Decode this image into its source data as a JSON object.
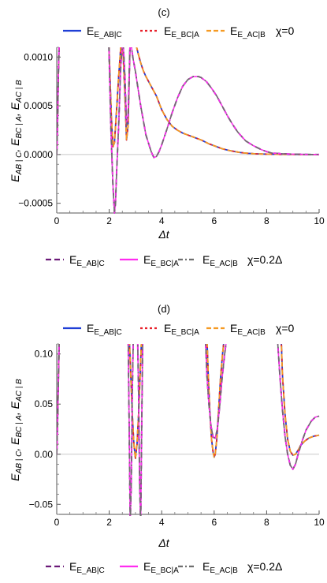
{
  "chart_data": [
    {
      "panel": "(c)",
      "type": "line",
      "xlabel": "Δt",
      "ylabel": "E_{AB|C}, E_{BC|A}, E_{AC|B}",
      "xlim": [
        0,
        10
      ],
      "ylim": [
        -0.0006,
        0.0011
      ],
      "xticks": [
        0,
        2,
        4,
        6,
        8,
        10
      ],
      "yticks": [
        -0.0005,
        0.0,
        0.0005,
        0.001
      ],
      "ytick_labels": [
        "−0.0005",
        "0.0000",
        "0.0005",
        "0.0010"
      ],
      "legend_top": {
        "entries": [
          "E_AB|C",
          "E_BC|A",
          "E_AC|B"
        ],
        "suffix": "χ=0"
      },
      "legend_bottom": {
        "entries": [
          "E_AB|C",
          "E_BC|A",
          "E_AC|B"
        ],
        "suffix": "χ=0.2Δ"
      },
      "series": [
        {
          "name": "E_AB|C, E_BC|A, E_AC|B (χ=0)",
          "style": "chi0",
          "x": [
            0,
            0.03,
            0.06,
            0.1,
            1.98,
            2.08,
            2.14,
            2.2,
            2.28,
            2.36,
            2.44,
            2.52,
            2.6,
            2.66,
            2.72,
            2.8,
            2.9,
            3.0,
            3.1,
            3.2,
            3.3,
            3.4,
            3.5,
            3.6,
            3.7,
            3.8,
            3.9,
            4.0,
            4.2,
            4.4,
            4.6,
            4.8,
            5.0,
            5.2,
            5.5,
            5.8,
            6.0,
            6.3,
            6.6,
            7.0,
            7.3,
            7.6,
            8.0,
            8.4,
            8.8,
            9.2,
            9.6,
            10.0
          ],
          "y": [
            0,
            0.0003,
            0.0008,
            0.0012,
            0.0012,
            0.0004,
            8e-05,
            0.00012,
            0.00045,
            0.0008,
            0.0011,
            0.0011,
            0.0006,
            0.00015,
            0.0003,
            0.0012,
            0.0012,
            0.00115,
            0.00104,
            0.00094,
            0.00086,
            0.0008,
            0.00075,
            0.0007,
            0.00065,
            0.0006,
            0.00053,
            0.00046,
            0.00036,
            0.00029,
            0.00025,
            0.00022,
            0.0002,
            0.00018,
            0.00015,
            0.00011,
            9e-05,
            6e-05,
            4e-05,
            2e-05,
            1.2e-05,
            7e-06,
            4e-06,
            2e-06,
            1e-06,
            5e-07,
            2e-07,
            1e-07
          ]
        },
        {
          "name": "E_AB|C, E_BC|A, E_AC|B (χ=0.2Δ)",
          "style": "chi02",
          "x": [
            0,
            0.03,
            0.06,
            0.1,
            1.98,
            2.06,
            2.14,
            2.2,
            2.24,
            2.28,
            2.36,
            2.44,
            2.52,
            2.6,
            2.66,
            2.72,
            2.8,
            2.9,
            3.0,
            3.2,
            3.4,
            3.6,
            3.7,
            3.8,
            3.9,
            4.0,
            4.2,
            4.4,
            4.6,
            4.8,
            5.0,
            5.2,
            5.4,
            5.5,
            5.7,
            5.9,
            6.1,
            6.3,
            6.5,
            6.7,
            6.9,
            7.2,
            7.5,
            7.8,
            8.0,
            8.2,
            8.6,
            9.0,
            9.5,
            10.0
          ],
          "y": [
            0,
            0.0003,
            0.0008,
            0.0012,
            0.0012,
            0.0003,
            -0.0003,
            -0.0006,
            -0.0005,
            -0.0002,
            0.0003,
            0.0009,
            0.0012,
            0.0008,
            0.0003,
            0.0004,
            0.0012,
            0.001,
            0.00085,
            0.0005,
            0.0002,
            3e-05,
            -3e-05,
            -2e-05,
            3e-05,
            0.0001,
            0.00026,
            0.00043,
            0.00058,
            0.0007,
            0.00077,
            0.0008,
            0.0008,
            0.00079,
            0.00075,
            0.00068,
            0.0006,
            0.0005,
            0.0004,
            0.00031,
            0.00023,
            0.00014,
            9e-05,
            5e-05,
            3e-05,
            1.5e-05,
            8e-06,
            4e-06,
            1e-06,
            5e-07
          ]
        }
      ]
    },
    {
      "panel": "(d)",
      "type": "line",
      "xlabel": "Δt",
      "ylabel": "E_{AB|C}, E_{BC|A}, E_{AC|B}",
      "xlim": [
        0,
        10
      ],
      "ylim": [
        -0.06,
        0.11
      ],
      "xticks": [
        0,
        2,
        4,
        6,
        8,
        10
      ],
      "yticks": [
        -0.05,
        0.0,
        0.05,
        0.1
      ],
      "ytick_labels": [
        "−0.05",
        "0.00",
        "0.05",
        "0.10"
      ],
      "legend_top": {
        "entries": [
          "E_AB|C",
          "E_BC|A",
          "E_AC|B"
        ],
        "suffix": "χ=0"
      },
      "legend_bottom": {
        "entries": [
          "E_AB|C",
          "E_BC|A",
          "E_AC|B"
        ],
        "suffix": "χ=0.2Δ"
      },
      "series": [
        {
          "name": "E_AB|C, E_BC|A, E_AC|B (χ=0)",
          "style": "chi0",
          "x": [
            0,
            0.03,
            0.06,
            0.1,
            2.76,
            2.82,
            2.88,
            2.94,
            3.0,
            3.06,
            3.12,
            3.18,
            3.24,
            5.72,
            5.78,
            5.84,
            5.9,
            5.96,
            6.0,
            6.04,
            6.1,
            6.16,
            6.24,
            6.32,
            6.4,
            8.55,
            8.6,
            8.7,
            8.8,
            8.9,
            9.0,
            9.1,
            9.2,
            9.3,
            9.45,
            9.6,
            9.8,
            10.0
          ],
          "y": [
            0,
            0.03,
            0.07,
            0.12,
            0.12,
            0.08,
            0.04,
            0.01,
            -0.004,
            0.01,
            0.04,
            0.08,
            0.12,
            0.12,
            0.075,
            0.04,
            0.015,
            0.002,
            -0.003,
            0.0,
            0.015,
            0.04,
            0.075,
            0.1,
            0.12,
            0.12,
            0.08,
            0.04,
            0.015,
            0.003,
            -0.001,
            0.0,
            0.004,
            0.009,
            0.013,
            0.016,
            0.018,
            0.019
          ]
        },
        {
          "name": "E_AB|C, E_BC|A, E_AC|B (χ=0.2Δ)",
          "style": "chi02",
          "x": [
            0,
            0.03,
            0.06,
            0.1,
            2.72,
            2.76,
            2.8,
            2.84,
            2.88,
            2.92,
            2.96,
            3.0,
            3.04,
            3.08,
            3.12,
            3.16,
            3.2,
            3.24,
            3.28,
            5.66,
            5.72,
            5.8,
            5.88,
            5.96,
            6.04,
            6.12,
            6.2,
            6.3,
            6.4,
            6.5,
            8.4,
            8.5,
            8.6,
            8.7,
            8.8,
            8.9,
            9.0,
            9.1,
            9.2,
            9.35,
            9.5,
            9.7,
            9.85,
            10.0
          ],
          "y": [
            0,
            0.03,
            0.07,
            0.12,
            0.12,
            0.03,
            -0.07,
            -0.03,
            0.06,
            0.12,
            0.12,
            0.12,
            0.12,
            0.12,
            0.06,
            -0.03,
            -0.07,
            0.03,
            0.12,
            0.12,
            0.08,
            0.05,
            0.028,
            0.017,
            0.016,
            0.025,
            0.045,
            0.075,
            0.1,
            0.12,
            0.12,
            0.08,
            0.045,
            0.018,
            0.0,
            -0.011,
            -0.015,
            -0.01,
            0.0,
            0.013,
            0.024,
            0.033,
            0.037,
            0.038
          ]
        }
      ]
    }
  ],
  "colors": {
    "chi0_blue": "#1f3fd6",
    "chi0_red": "#e8202a",
    "chi0_orange": "#f59a23",
    "chi02_purple": "#6b1a78",
    "chi02_magenta": "#ff2df0",
    "chi02_gray": "#6e6e6e"
  }
}
